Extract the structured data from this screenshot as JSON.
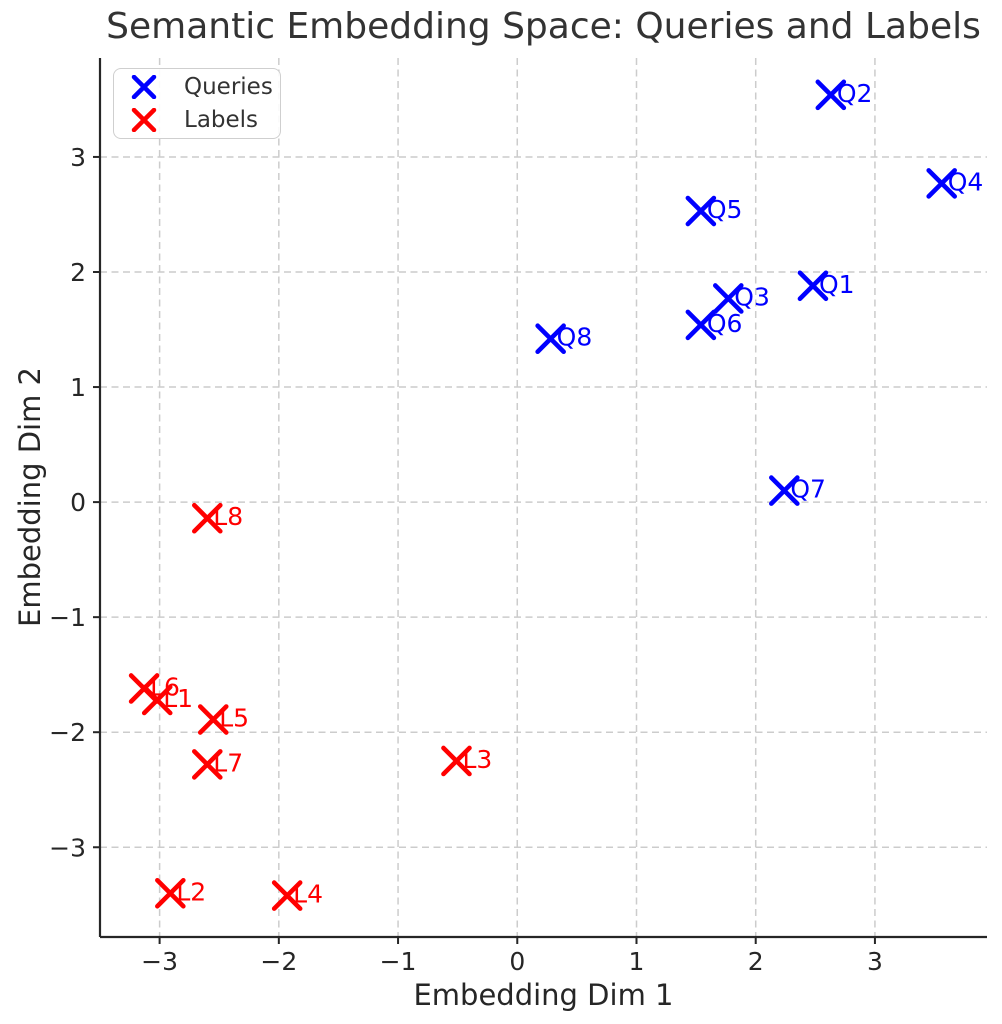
{
  "chart_data": {
    "type": "scatter",
    "title": "Semantic Embedding Space: Queries and Labels",
    "xlabel": "Embedding Dim 1",
    "ylabel": "Embedding Dim 2",
    "xlim": [
      -3.5,
      3.94
    ],
    "ylim": [
      -3.78,
      3.86
    ],
    "xtick_values": [
      -3,
      -2,
      -1,
      0,
      1,
      2,
      3
    ],
    "xtick_labels": [
      "−3",
      "−2",
      "−1",
      "0",
      "1",
      "2",
      "3"
    ],
    "ytick_values": [
      -3,
      -2,
      -1,
      0,
      1,
      2,
      3
    ],
    "ytick_labels": [
      "−3",
      "−2",
      "−1",
      "0",
      "1",
      "2",
      "3"
    ],
    "grid": true,
    "grid_style": "dashed",
    "marker": "x",
    "series": [
      {
        "name": "Queries",
        "color": "#0000ff",
        "points": [
          {
            "label": "Q1",
            "x": 2.48,
            "y": 1.88
          },
          {
            "label": "Q2",
            "x": 2.63,
            "y": 3.54
          },
          {
            "label": "Q3",
            "x": 1.77,
            "y": 1.77
          },
          {
            "label": "Q4",
            "x": 3.56,
            "y": 2.77
          },
          {
            "label": "Q5",
            "x": 1.54,
            "y": 2.53
          },
          {
            "label": "Q6",
            "x": 1.54,
            "y": 1.54
          },
          {
            "label": "Q7",
            "x": 2.24,
            "y": 0.1
          },
          {
            "label": "Q8",
            "x": 0.28,
            "y": 1.42
          }
        ]
      },
      {
        "name": "Labels",
        "color": "#ff0000",
        "points": [
          {
            "label": "L1",
            "x": -3.02,
            "y": -1.72
          },
          {
            "label": "L2",
            "x": -2.91,
            "y": -3.4
          },
          {
            "label": "L3",
            "x": -0.51,
            "y": -2.25
          },
          {
            "label": "L4",
            "x": -1.93,
            "y": -3.42
          },
          {
            "label": "L5",
            "x": -2.55,
            "y": -1.89
          },
          {
            "label": "L6",
            "x": -3.13,
            "y": -1.62
          },
          {
            "label": "L7",
            "x": -2.6,
            "y": -2.28
          },
          {
            "label": "L8",
            "x": -2.6,
            "y": -0.14
          }
        ]
      }
    ],
    "legend": {
      "position": "upper left",
      "entries": [
        {
          "label": "Queries",
          "color": "#0000ff"
        },
        {
          "label": "Labels",
          "color": "#ff0000"
        }
      ]
    },
    "styles": {
      "grid_color": "#cccccc",
      "spine_color": "#262626",
      "tick_text_color": "#262626",
      "title_color": "#333333",
      "background": "#ffffff"
    }
  }
}
